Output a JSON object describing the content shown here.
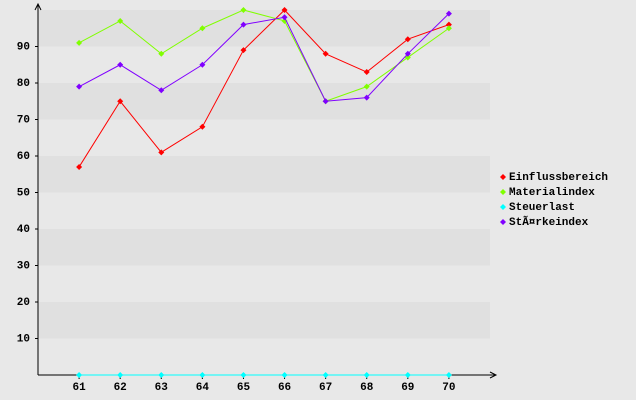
{
  "chart_data": {
    "type": "line",
    "x": [
      61,
      62,
      63,
      64,
      65,
      66,
      67,
      68,
      69,
      70
    ],
    "xlim": [
      60,
      71
    ],
    "xticks": [
      61,
      62,
      63,
      64,
      65,
      66,
      67,
      68,
      69,
      70
    ],
    "ylim": [
      0,
      100
    ],
    "yticks": [
      10,
      20,
      30,
      40,
      50,
      60,
      70,
      80,
      90
    ],
    "grid": true,
    "legend": "right",
    "series": [
      {
        "name": "Einflussbereich",
        "color": "#ff0000",
        "values": [
          57,
          75,
          61,
          68,
          89,
          100,
          88,
          83,
          92,
          96
        ]
      },
      {
        "name": "Materialindex",
        "color": "#80ff00",
        "values": [
          91,
          97,
          88,
          95,
          100,
          97,
          75,
          79,
          87,
          95
        ]
      },
      {
        "name": "Steuerlast",
        "color": "#00ffff",
        "values": [
          0,
          0,
          0,
          0,
          0,
          0,
          0,
          0,
          0,
          0
        ]
      },
      {
        "name": "StÃ¤rkeindex",
        "color": "#8000ff",
        "values": [
          79,
          85,
          78,
          85,
          96,
          98,
          75,
          76,
          88,
          99
        ]
      }
    ]
  }
}
